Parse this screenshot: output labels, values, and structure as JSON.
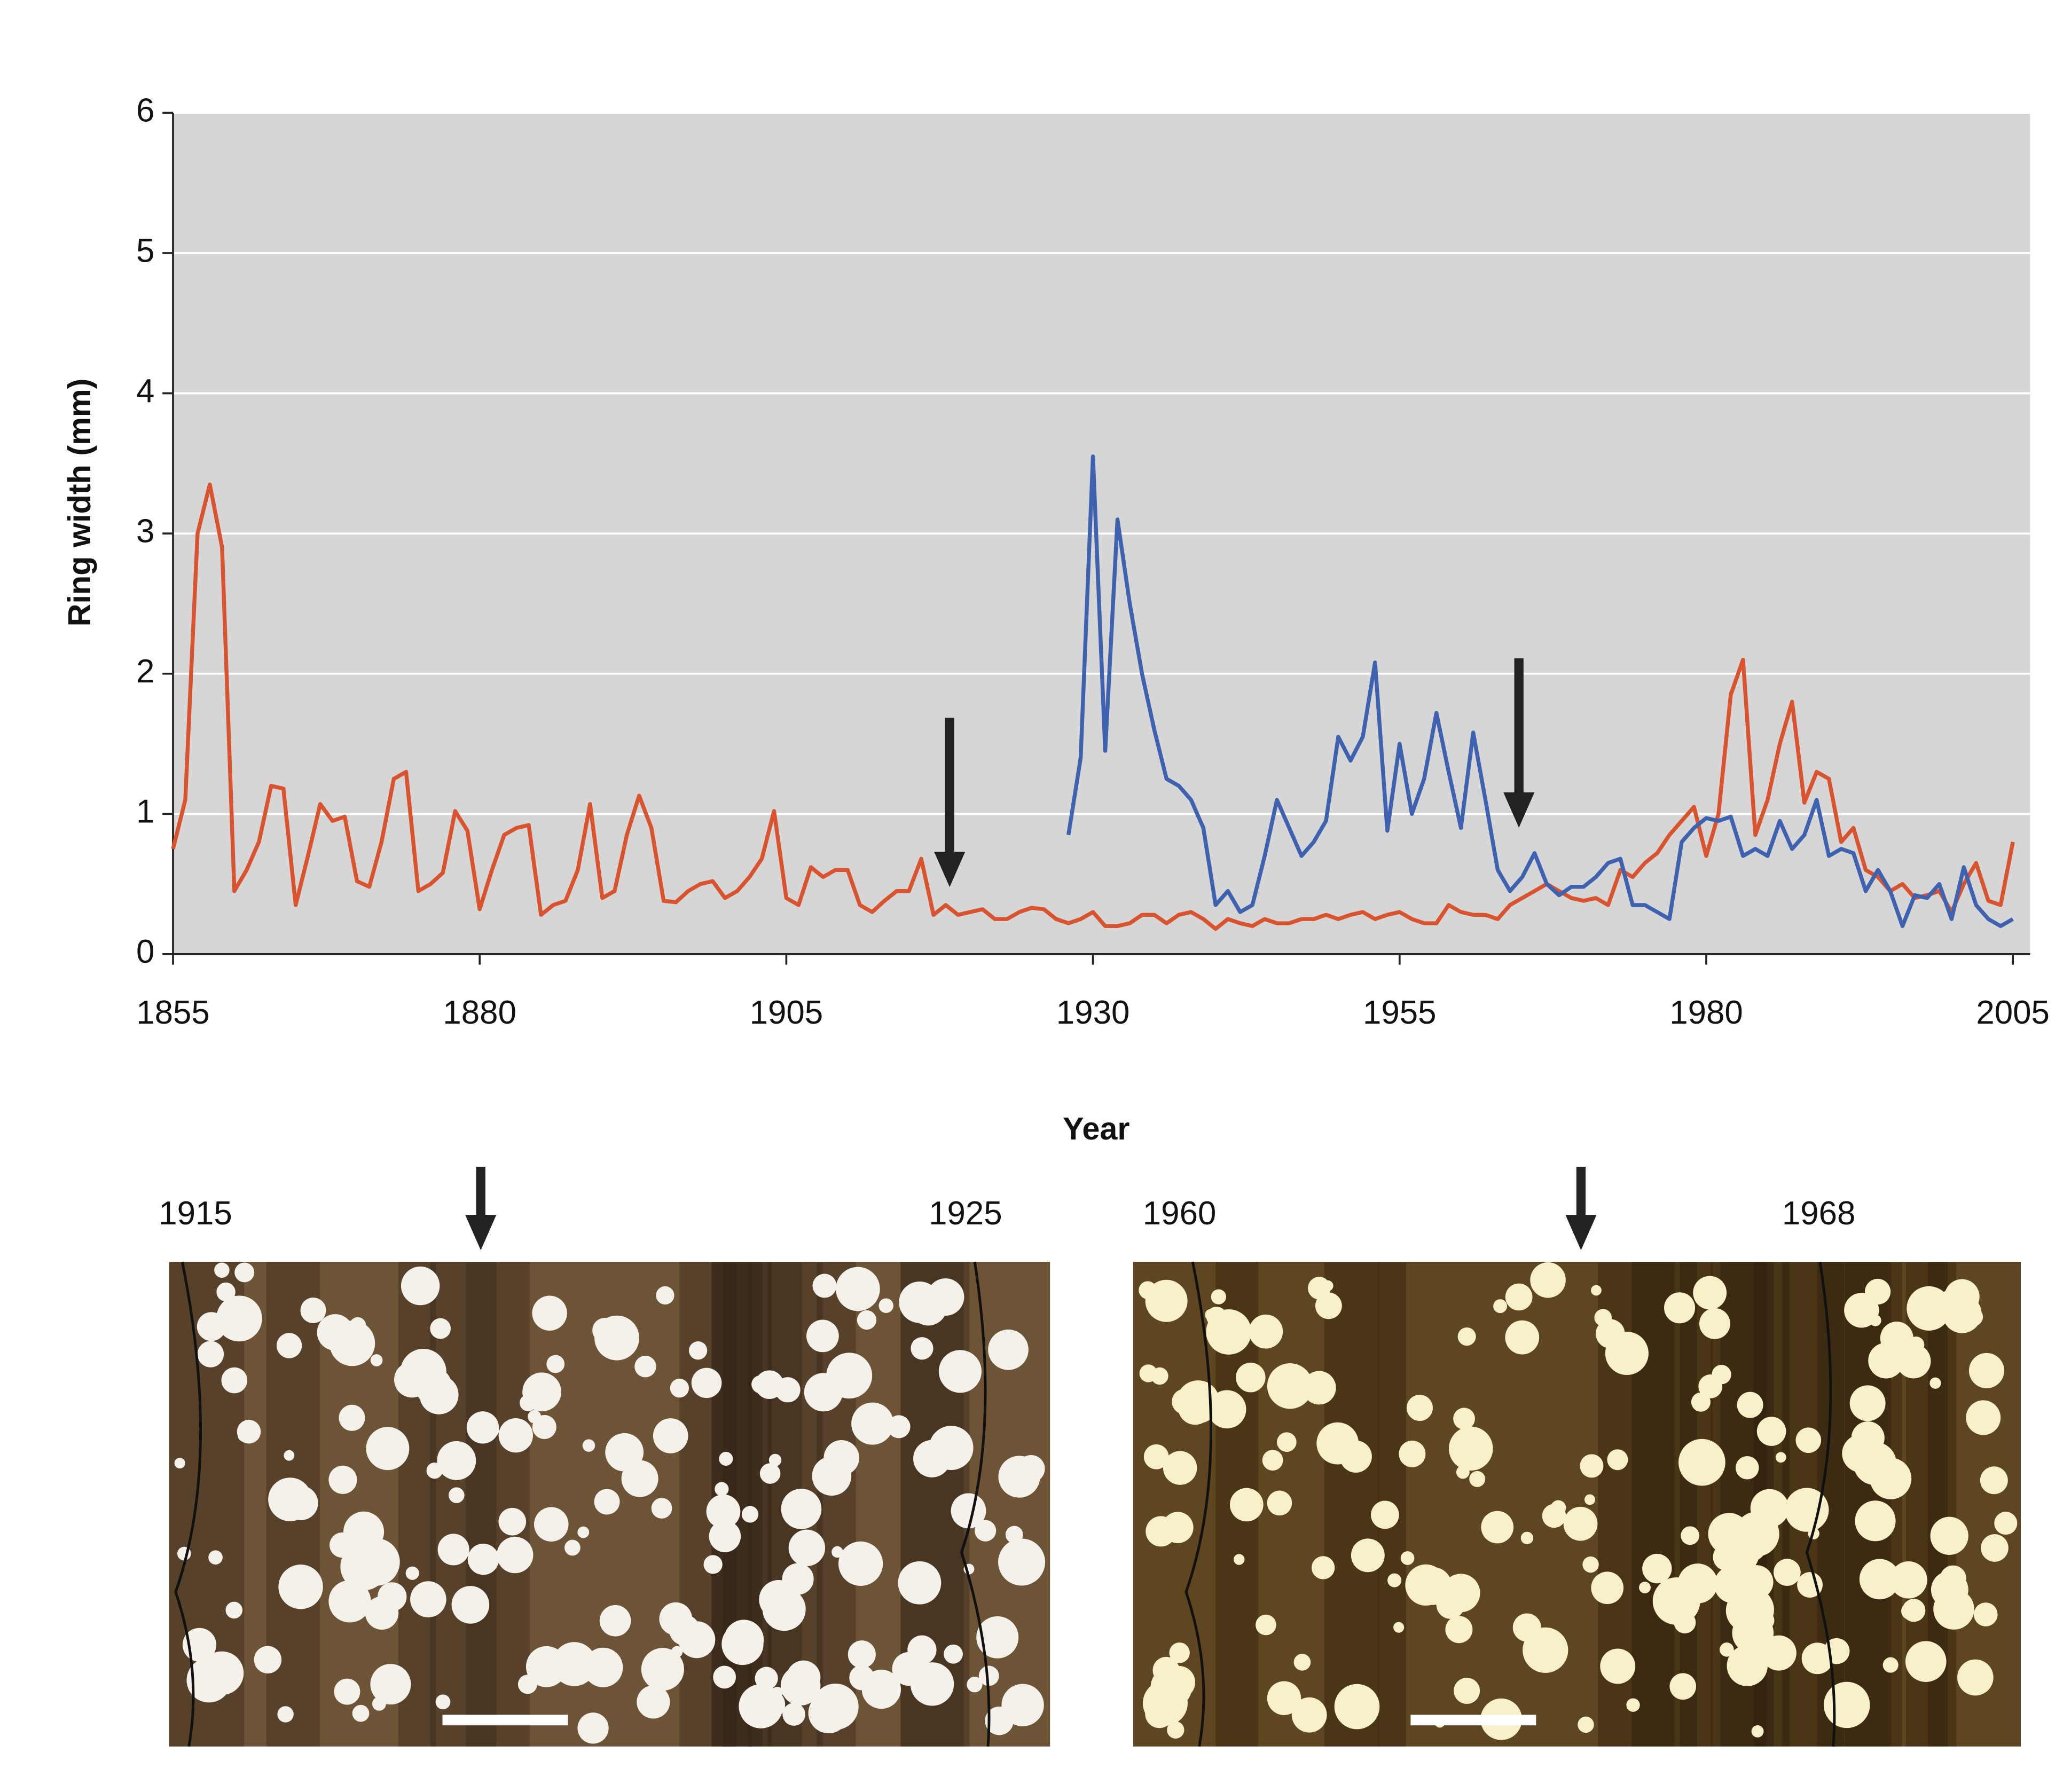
{
  "chart_data": {
    "type": "line",
    "ylabel": "Ring width (mm)",
    "xlabel": "Year",
    "xlim": [
      1855,
      2005
    ],
    "ylim": [
      0,
      6
    ],
    "xticks": [
      1855,
      1880,
      1905,
      1930,
      1955,
      1980,
      2005
    ],
    "yticks": [
      0,
      1,
      2,
      3,
      4,
      5,
      6
    ],
    "grid": true,
    "x": [
      1855,
      1856,
      1857,
      1858,
      1859,
      1860,
      1861,
      1862,
      1863,
      1864,
      1865,
      1866,
      1867,
      1868,
      1869,
      1870,
      1871,
      1872,
      1873,
      1874,
      1875,
      1876,
      1877,
      1878,
      1879,
      1880,
      1881,
      1882,
      1883,
      1884,
      1885,
      1886,
      1887,
      1888,
      1889,
      1890,
      1891,
      1892,
      1893,
      1894,
      1895,
      1896,
      1897,
      1898,
      1899,
      1900,
      1901,
      1902,
      1903,
      1904,
      1905,
      1906,
      1907,
      1908,
      1909,
      1910,
      1911,
      1912,
      1913,
      1914,
      1915,
      1916,
      1917,
      1918,
      1919,
      1920,
      1921,
      1922,
      1923,
      1924,
      1925,
      1926,
      1927,
      1928,
      1929,
      1930,
      1931,
      1932,
      1933,
      1934,
      1935,
      1936,
      1937,
      1938,
      1939,
      1940,
      1941,
      1942,
      1943,
      1944,
      1945,
      1946,
      1947,
      1948,
      1949,
      1950,
      1951,
      1952,
      1953,
      1954,
      1955,
      1956,
      1957,
      1958,
      1959,
      1960,
      1961,
      1962,
      1963,
      1964,
      1965,
      1966,
      1967,
      1968,
      1969,
      1970,
      1971,
      1972,
      1973,
      1974,
      1975,
      1976,
      1977,
      1978,
      1979,
      1980,
      1981,
      1982,
      1983,
      1984,
      1985,
      1986,
      1987,
      1988,
      1989,
      1990,
      1991,
      1992,
      1993,
      1994,
      1995,
      1996,
      1997,
      1998,
      1999,
      2000,
      2001,
      2002,
      2003,
      2004,
      2005
    ],
    "series": [
      {
        "color": "#d9532f",
        "values": [
          0.75,
          1.1,
          3.0,
          3.35,
          2.9,
          0.45,
          0.6,
          0.8,
          1.2,
          1.18,
          0.35,
          0.7,
          1.07,
          0.95,
          0.98,
          0.52,
          0.48,
          0.8,
          1.25,
          1.3,
          0.45,
          0.5,
          0.58,
          1.02,
          0.88,
          0.32,
          0.6,
          0.85,
          0.9,
          0.92,
          0.28,
          0.35,
          0.38,
          0.6,
          1.07,
          0.4,
          0.45,
          0.85,
          1.13,
          0.9,
          0.38,
          0.37,
          0.45,
          0.5,
          0.52,
          0.4,
          0.45,
          0.55,
          0.68,
          1.02,
          0.4,
          0.35,
          0.62,
          0.55,
          0.6,
          0.6,
          0.35,
          0.3,
          0.38,
          0.45,
          0.45,
          0.68,
          0.28,
          0.35,
          0.28,
          0.3,
          0.32,
          0.25,
          0.25,
          0.3,
          0.33,
          0.32,
          0.25,
          0.22,
          0.25,
          0.3,
          0.2,
          0.2,
          0.22,
          0.28,
          0.28,
          0.22,
          0.28,
          0.3,
          0.25,
          0.18,
          0.25,
          0.22,
          0.2,
          0.25,
          0.22,
          0.22,
          0.25,
          0.25,
          0.28,
          0.25,
          0.28,
          0.3,
          0.25,
          0.28,
          0.3,
          0.25,
          0.22,
          0.22,
          0.35,
          0.3,
          0.28,
          0.28,
          0.25,
          0.35,
          0.4,
          0.45,
          0.5,
          0.45,
          0.4,
          0.38,
          0.4,
          0.35,
          0.6,
          0.55,
          0.65,
          0.72,
          0.85,
          0.95,
          1.05,
          0.7,
          1.0,
          1.85,
          2.1,
          0.85,
          1.1,
          1.5,
          1.8,
          1.08,
          1.3,
          1.25,
          0.8,
          0.9,
          0.6,
          0.55,
          0.45,
          0.5,
          0.4,
          0.42,
          0.45,
          0.3,
          0.5,
          0.65,
          0.38,
          0.35,
          0.8
        ]
      },
      {
        "color": "#3f62b0",
        "values": [
          null,
          null,
          null,
          null,
          null,
          null,
          null,
          null,
          null,
          null,
          null,
          null,
          null,
          null,
          null,
          null,
          null,
          null,
          null,
          null,
          null,
          null,
          null,
          null,
          null,
          null,
          null,
          null,
          null,
          null,
          null,
          null,
          null,
          null,
          null,
          null,
          null,
          null,
          null,
          null,
          null,
          null,
          null,
          null,
          null,
          null,
          null,
          null,
          null,
          null,
          null,
          null,
          null,
          null,
          null,
          null,
          null,
          null,
          null,
          null,
          null,
          null,
          null,
          null,
          null,
          null,
          null,
          null,
          null,
          null,
          null,
          null,
          null,
          0.85,
          1.4,
          3.55,
          1.45,
          3.1,
          2.5,
          2.0,
          1.6,
          1.25,
          1.2,
          1.1,
          0.9,
          0.35,
          0.45,
          0.3,
          0.35,
          0.7,
          1.1,
          0.9,
          0.7,
          0.8,
          0.95,
          1.55,
          1.38,
          1.55,
          2.08,
          0.88,
          1.5,
          1.0,
          1.25,
          1.72,
          1.3,
          0.9,
          1.58,
          1.1,
          0.6,
          0.45,
          0.55,
          0.72,
          0.5,
          0.42,
          0.48,
          0.48,
          0.55,
          0.65,
          0.68,
          0.35,
          0.35,
          0.3,
          0.25,
          0.8,
          0.9,
          0.97,
          0.95,
          0.98,
          0.7,
          0.75,
          0.7,
          0.95,
          0.75,
          0.85,
          1.1,
          0.7,
          0.75,
          0.72,
          0.45,
          0.6,
          0.45,
          0.2,
          0.42,
          0.4,
          0.5,
          0.25,
          0.62,
          0.35,
          0.25,
          0.2,
          0.25
        ]
      }
    ]
  },
  "photos": [
    {
      "left_label": "1915",
      "right_label": "1925"
    },
    {
      "left_label": "1960",
      "right_label": "1968"
    }
  ]
}
